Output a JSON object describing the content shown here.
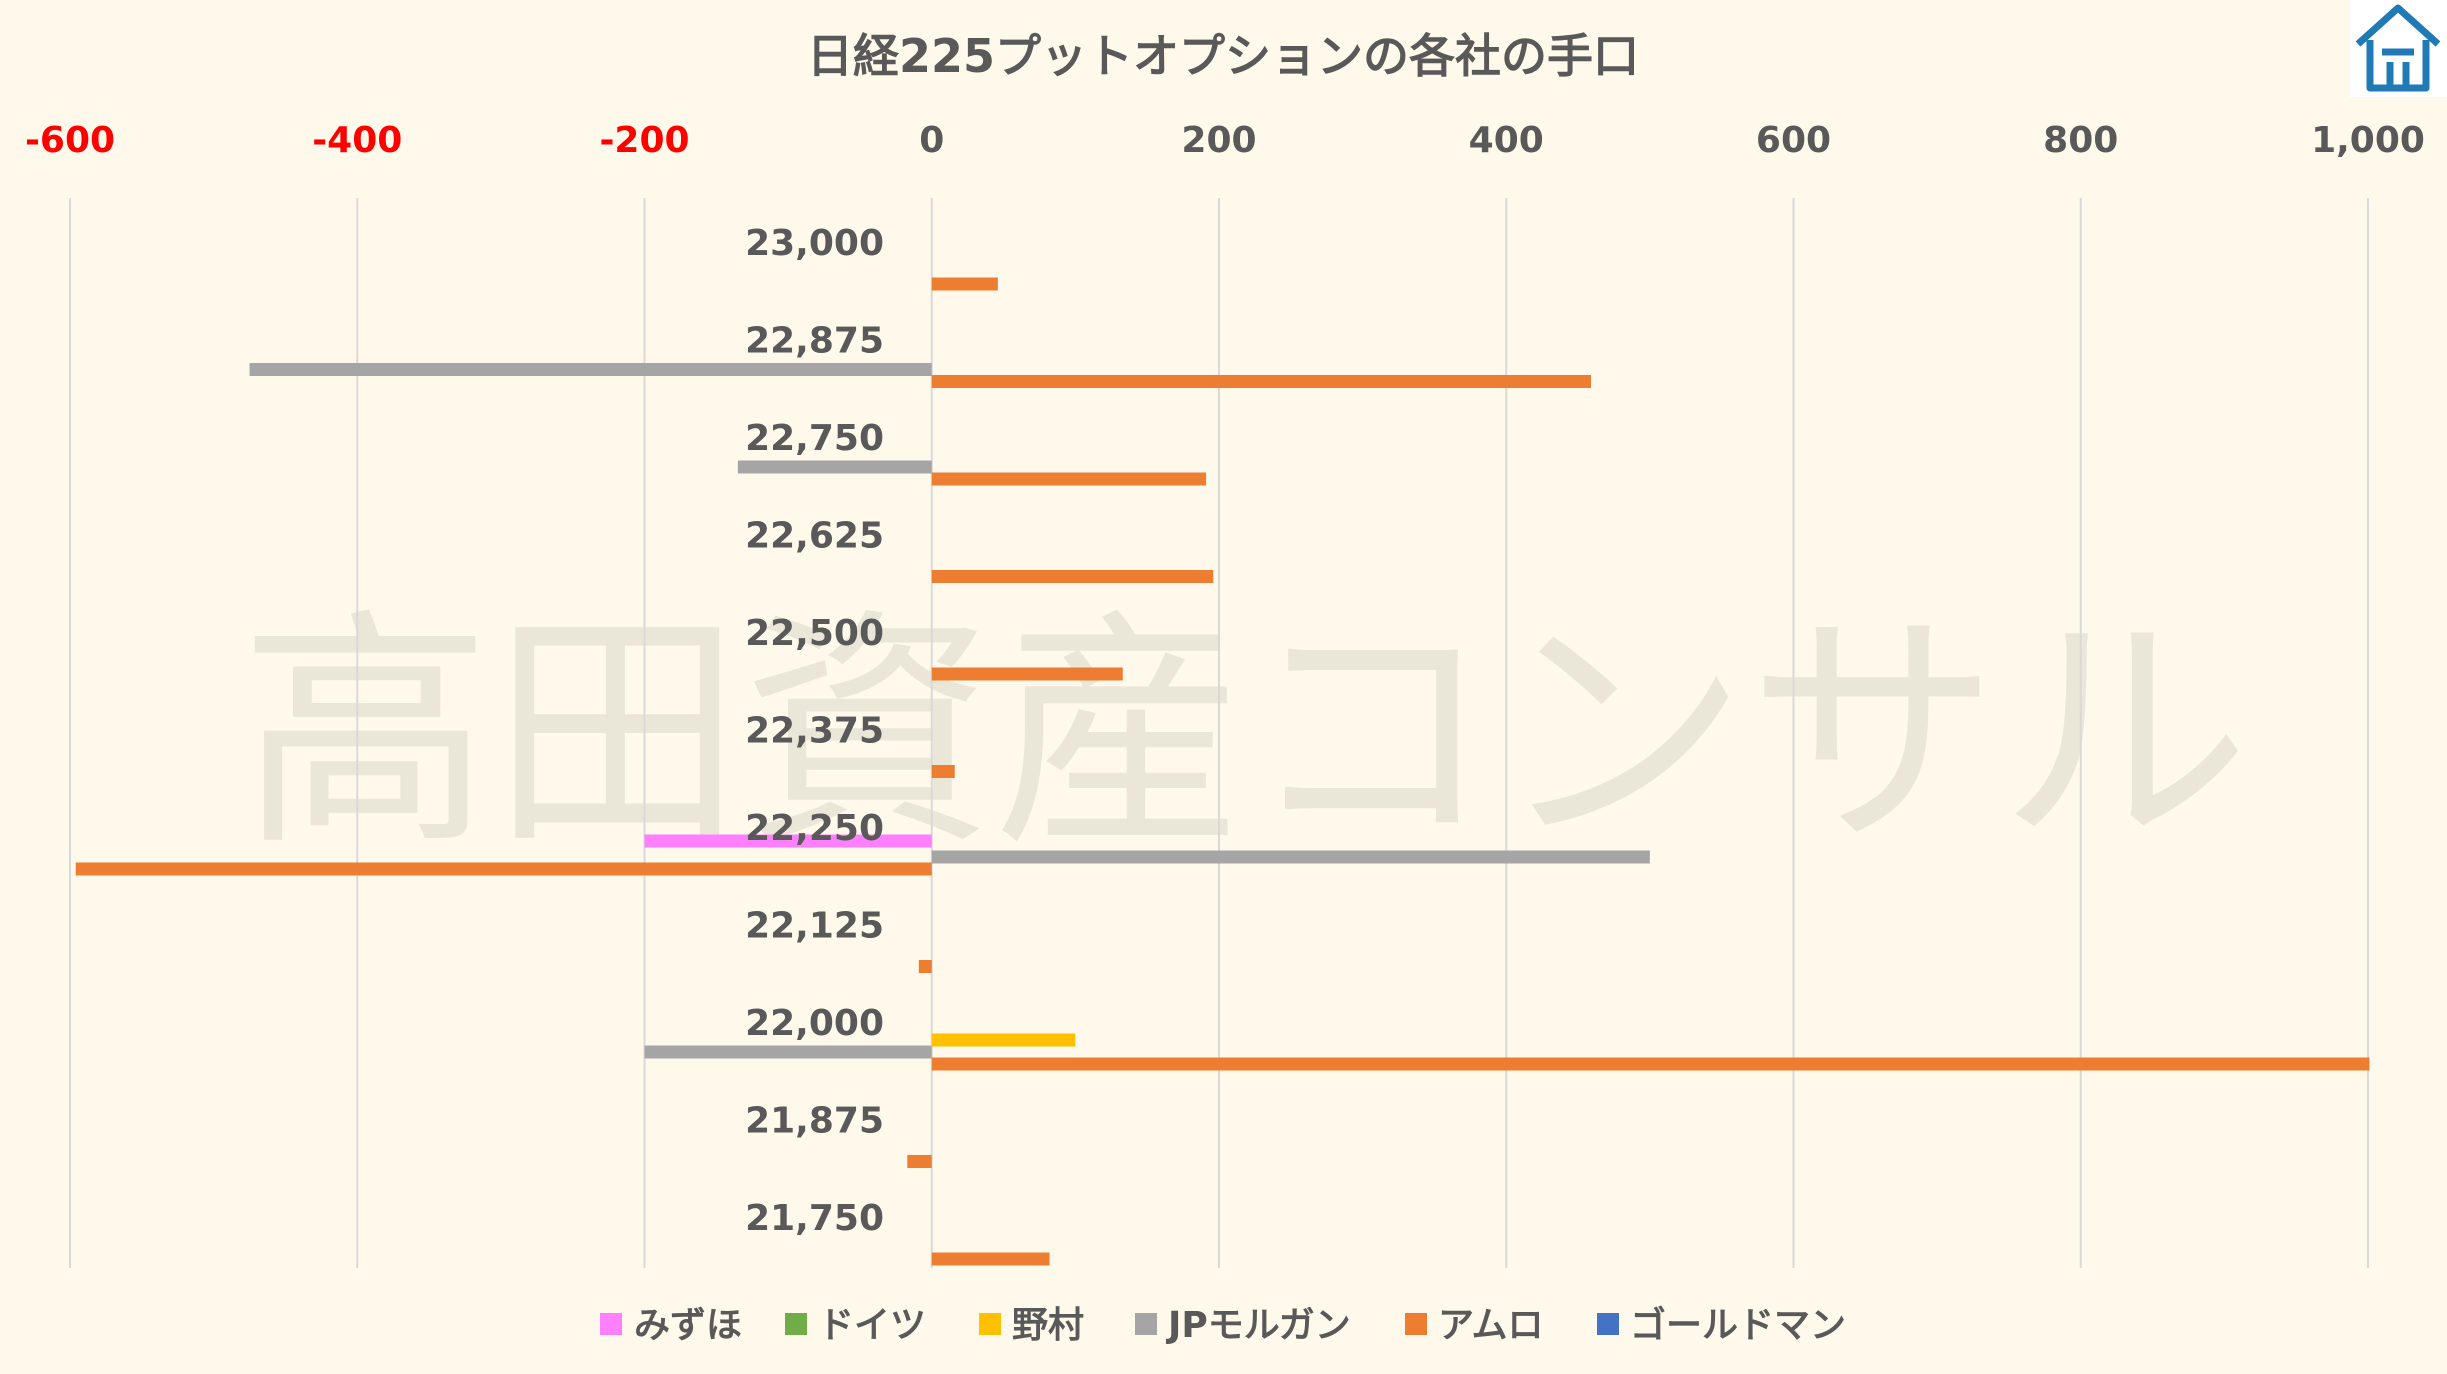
{
  "watermark": "高田資産コンサル",
  "colors": {
    "background": "#fef9ea",
    "grid": "#d9d9d9",
    "negative_tick": "#ff0000",
    "tick": "#595959",
    "logo": "#1f7ab5"
  },
  "logo_icon": "house-logo-icon",
  "chart_data": {
    "type": "bar",
    "orientation": "horizontal",
    "title": "日経225プットオプションの各社の手口",
    "xlim": [
      -600,
      1000
    ],
    "ticks": [
      -600,
      -400,
      -200,
      0,
      200,
      400,
      600,
      800,
      1000
    ],
    "tick_labels": [
      "-600",
      "-400",
      "-200",
      "0",
      "200",
      "400",
      "600",
      "800",
      "1,000"
    ],
    "categories": [
      "23,000",
      "22,875",
      "22,750",
      "22,625",
      "22,500",
      "22,375",
      "22,250",
      "22,125",
      "22,000",
      "21,875",
      "21,750"
    ],
    "legend_position": "bottom",
    "grid": true,
    "series": [
      {
        "name": "みずほ",
        "color": "#ff80ff",
        "values": [
          0,
          0,
          0,
          0,
          0,
          0,
          -200,
          0,
          0,
          0,
          0
        ]
      },
      {
        "name": "ドイツ",
        "color": "#70ad47",
        "values": [
          0,
          0,
          0,
          0,
          0,
          0,
          0,
          0,
          0,
          0,
          0
        ]
      },
      {
        "name": "野村",
        "color": "#ffc000",
        "values": [
          0,
          0,
          0,
          0,
          0,
          0,
          0,
          0,
          100,
          0,
          0
        ]
      },
      {
        "name": "JPモルガン",
        "color": "#a5a5a5",
        "values": [
          0,
          -475,
          -135,
          0,
          0,
          0,
          500,
          0,
          -200,
          0,
          0
        ]
      },
      {
        "name": "アムロ",
        "color": "#ed7d31",
        "values": [
          46,
          459,
          191,
          196,
          133,
          16,
          -596,
          -9,
          1001,
          -17,
          82
        ]
      },
      {
        "name": "ゴールドマン",
        "color": "#4472c4",
        "values": [
          0,
          0,
          0,
          0,
          0,
          0,
          0,
          0,
          0,
          0,
          0
        ]
      }
    ]
  }
}
